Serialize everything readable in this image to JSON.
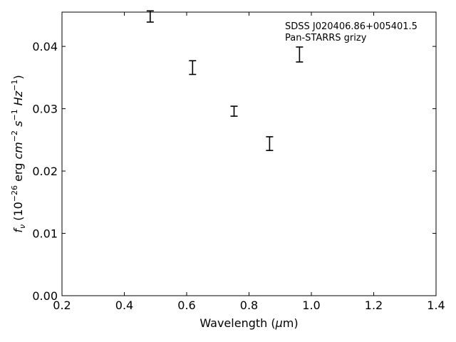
{
  "chart_data": {
    "type": "scatter",
    "title": "",
    "annotation": [
      "SDSS J020406.86+005401.5",
      "Pan-STARRS grizy"
    ],
    "xlabel": "Wavelength (μm)",
    "ylabel": "f_ν (10^-26 erg cm^-2 s^-1 Hz^-1)",
    "xlim": [
      0.2,
      1.4
    ],
    "ylim": [
      0.0,
      0.0455
    ],
    "xticks": [
      "0.2",
      "0.4",
      "0.6",
      "0.8",
      "1.0",
      "1.2",
      "1.4"
    ],
    "yticks": [
      "0.00",
      "0.01",
      "0.02",
      "0.03",
      "0.04"
    ],
    "grid": false,
    "series": [
      {
        "points": [
          {
            "x": 0.483,
            "y": 0.0448,
            "err": 0.0009
          },
          {
            "x": 0.619,
            "y": 0.0366,
            "err": 0.0011
          },
          {
            "x": 0.752,
            "y": 0.0296,
            "err": 0.0008
          },
          {
            "x": 0.866,
            "y": 0.0244,
            "err": 0.0011
          },
          {
            "x": 0.962,
            "y": 0.0387,
            "err": 0.0012
          }
        ]
      }
    ]
  }
}
